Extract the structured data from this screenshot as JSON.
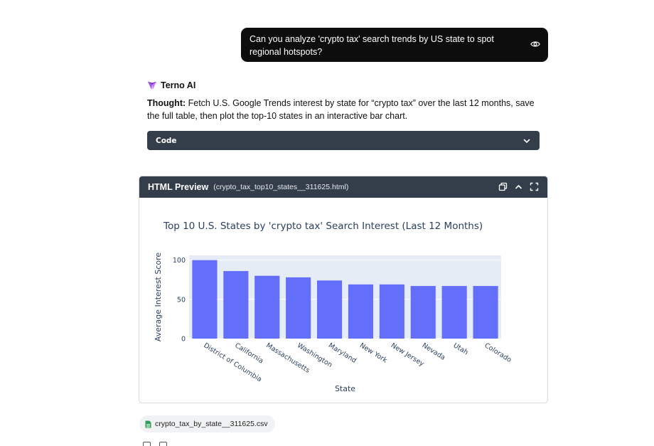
{
  "user_message": {
    "text": "Can you analyze 'crypto tax' search trends by US state to spot regional hotspots?"
  },
  "assistant": {
    "name": "Terno AI",
    "thought_label": "Thought:",
    "thought_text": " Fetch U.S. Google Trends interest by state for “crypto tax” over the last 12 months, save the full table, then plot the top-10 states in an interactive bar chart.",
    "code_label": "Code"
  },
  "preview": {
    "title": "HTML Preview",
    "filename": "(crypto_tax_top10_states__311625.html)"
  },
  "chart_data": {
    "type": "bar",
    "title": "Top 10 U.S. States by 'crypto tax' Search Interest (Last 12 Months)",
    "xlabel": "State",
    "ylabel": "Average Interest Score",
    "categories": [
      "District of Columbia",
      "California",
      "Massachusetts",
      "Washington",
      "Maryland",
      "New York",
      "New Jersey",
      "Nevada",
      "Utah",
      "Colorado"
    ],
    "values": [
      100,
      86,
      80,
      78,
      74,
      69,
      69,
      67,
      67,
      67
    ],
    "ylim": [
      0,
      106
    ],
    "yticks": [
      0,
      50,
      100
    ],
    "bar_color": "#636efa",
    "plot_bg": "#e5ecf6",
    "grid": true
  },
  "file_chip": {
    "name": "crypto_tax_by_state__311625.csv"
  }
}
